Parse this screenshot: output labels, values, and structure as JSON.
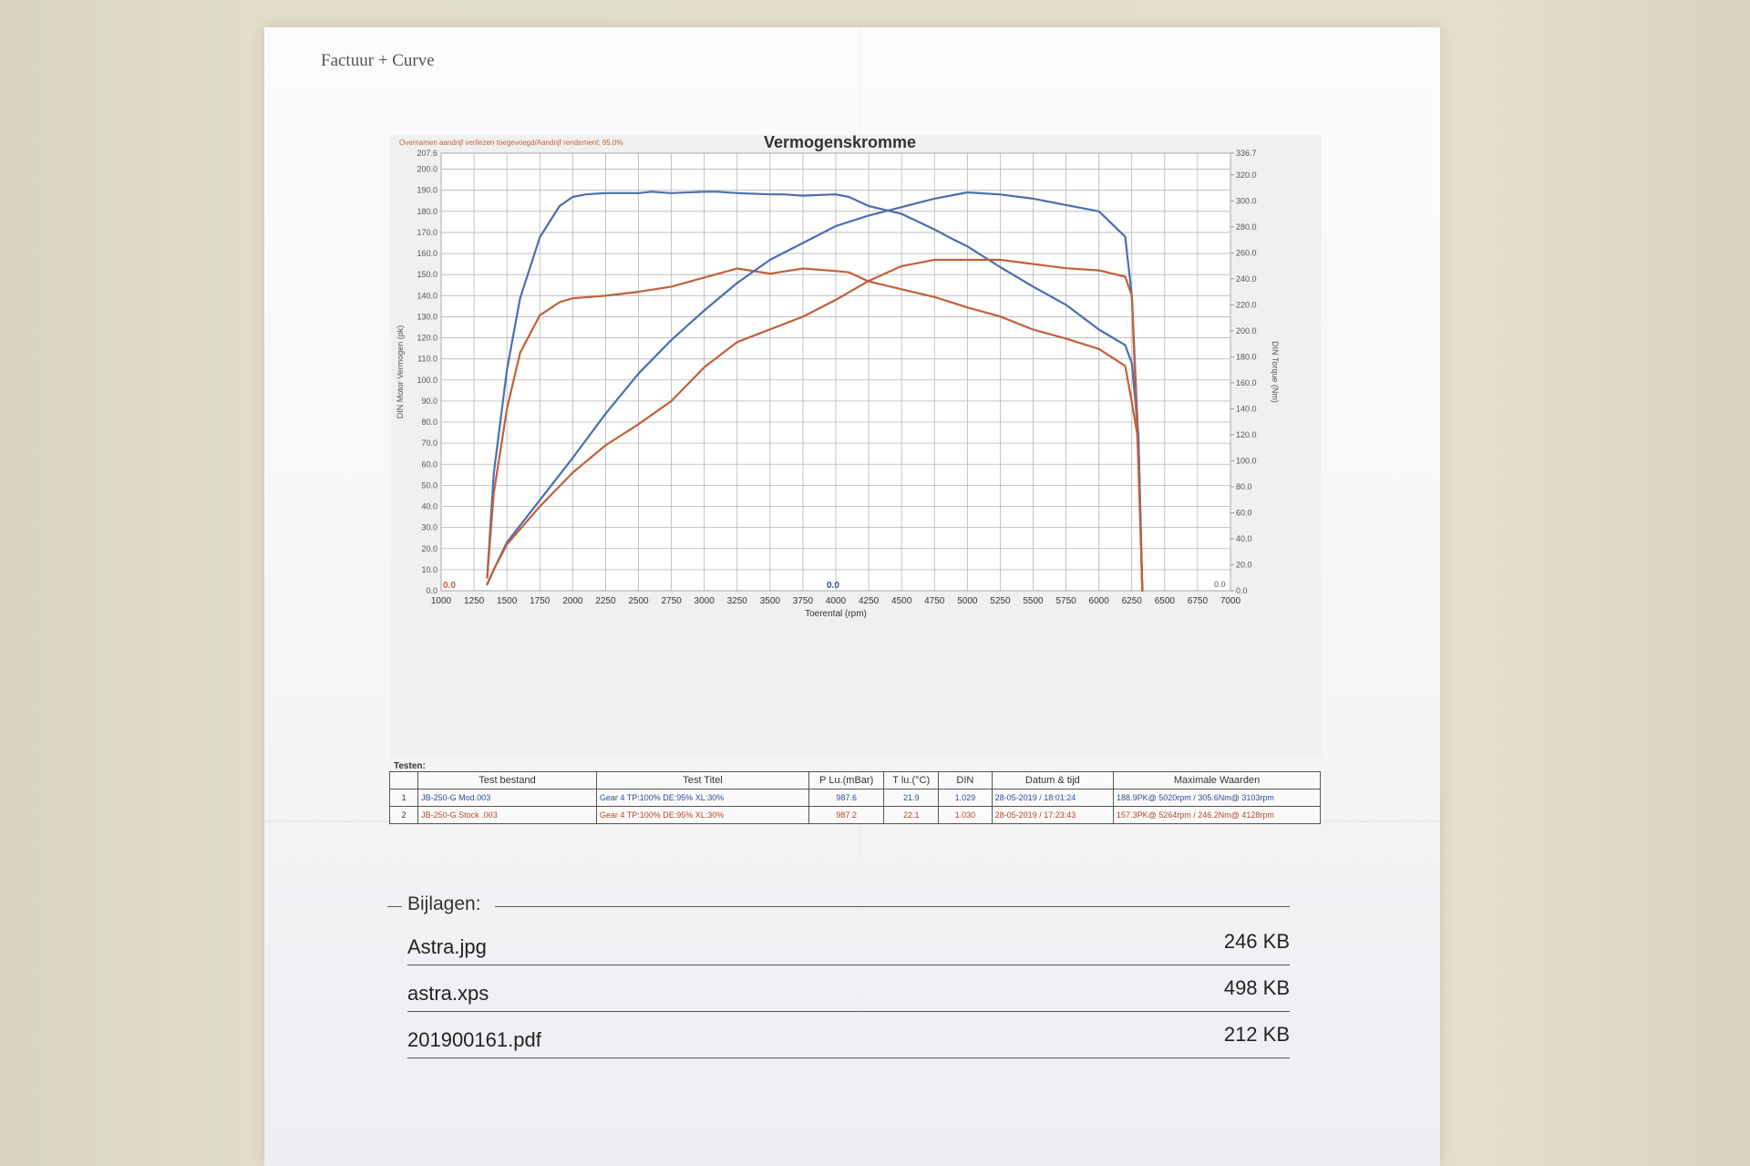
{
  "document": {
    "header": "Factuur + Curve"
  },
  "chart_data": {
    "type": "line",
    "title": "Vermogenskromme",
    "subtitle": "Overnamen aandrijf verliezen toegevoegd/Aandrijf rendement: 95.0%",
    "xlabel": "Toerental (rpm)",
    "ylabel_left": "DIN Motor Vermogen (pk)",
    "ylabel_right": "DIN Torque (Nm)",
    "xlim": [
      1000,
      7000
    ],
    "ylim_left": [
      0,
      207.6
    ],
    "ylim_right": [
      0,
      336.7
    ],
    "x_ticks": [
      1000,
      1250,
      1500,
      1750,
      2000,
      2250,
      2500,
      2750,
      3000,
      3250,
      3500,
      3750,
      4000,
      4250,
      4500,
      4750,
      5000,
      5250,
      5500,
      5750,
      6000,
      6250,
      6500,
      6750,
      7000
    ],
    "y_left_ticks": [
      "0.0",
      "10.0",
      "20.0",
      "30.0",
      "40.0",
      "50.0",
      "60.0",
      "70.0",
      "80.0",
      "90.0",
      "100.0",
      "110.0",
      "120.0",
      "130.0",
      "140.0",
      "150.0",
      "160.0",
      "170.0",
      "180.0",
      "190.0",
      "200.0",
      "207.6"
    ],
    "y_right_ticks": [
      "0.0",
      "20.0",
      "40.0",
      "60.0",
      "80.0",
      "100.0",
      "120.0",
      "140.0",
      "160.0",
      "180.0",
      "200.0",
      "220.0",
      "240.0",
      "260.0",
      "280.0",
      "300.0",
      "320.0",
      "336.7"
    ],
    "grid": true,
    "zero_labels": [
      "0.0",
      "0.0",
      "0.0"
    ],
    "series": [
      {
        "color": "#4a6fb0",
        "axis": "right",
        "kind": "torque",
        "x": [
          1350,
          1400,
          1500,
          1600,
          1750,
          1900,
          2000,
          2100,
          2250,
          2400,
          2500,
          2600,
          2750,
          3000,
          3100,
          3250,
          3500,
          3600,
          3750,
          4000,
          4100,
          4250,
          4500,
          4750,
          4900,
          5000,
          5250,
          5500,
          5750,
          6000,
          6200,
          6250,
          6300,
          6330
        ],
        "y": [
          10,
          90,
          170,
          225,
          272,
          296,
          303,
          305,
          306,
          306,
          306,
          307,
          306,
          307,
          307,
          306,
          305,
          305,
          304,
          305,
          303,
          296,
          290,
          278,
          270,
          265,
          249,
          234,
          220,
          201,
          189,
          175,
          120,
          0
        ]
      },
      {
        "color": "#c2603a",
        "axis": "right",
        "kind": "torque",
        "x": [
          1350,
          1400,
          1500,
          1600,
          1750,
          1900,
          2000,
          2250,
          2500,
          2750,
          3000,
          3250,
          3500,
          3750,
          4000,
          4100,
          4250,
          4500,
          4750,
          5000,
          5250,
          5500,
          5750,
          6000,
          6200,
          6250,
          6300,
          6330
        ],
        "y": [
          10,
          75,
          140,
          183,
          212,
          222,
          225,
          227,
          230,
          234,
          241,
          248,
          244,
          248,
          246,
          245,
          238,
          232,
          226,
          218,
          211,
          201,
          194,
          186,
          173,
          145,
          115,
          0
        ]
      },
      {
        "color": "#4a6fb0",
        "axis": "left",
        "kind": "power",
        "x": [
          1350,
          1400,
          1500,
          1750,
          2000,
          2250,
          2500,
          2750,
          3000,
          3250,
          3500,
          3750,
          4000,
          4250,
          4500,
          4750,
          5000,
          5250,
          5500,
          5750,
          6000,
          6200,
          6250,
          6300,
          6330
        ],
        "y": [
          3,
          10,
          23,
          43,
          63,
          84,
          103,
          119,
          133,
          146,
          157,
          165,
          173,
          178,
          182,
          186,
          189,
          188,
          186,
          183,
          180,
          168,
          140,
          70,
          0
        ]
      },
      {
        "color": "#c2603a",
        "axis": "left",
        "kind": "power",
        "x": [
          1350,
          1400,
          1500,
          1750,
          2000,
          2250,
          2500,
          2750,
          3000,
          3250,
          3500,
          3750,
          4000,
          4250,
          4500,
          4750,
          5000,
          5250,
          5500,
          5750,
          6000,
          6200,
          6250,
          6300,
          6330
        ],
        "y": [
          3,
          10,
          22,
          40,
          56,
          69,
          79,
          90,
          106,
          118,
          124,
          130,
          138,
          147,
          154,
          157,
          157,
          157,
          155,
          153,
          152,
          149,
          140,
          60,
          0
        ]
      }
    ]
  },
  "tests": {
    "label": "Testen:",
    "headers": [
      "",
      "Test bestand",
      "Test Titel",
      "P Lu.(mBar)",
      "T lu.(°C)",
      "DIN",
      "Datum & tijd",
      "Maximale Waarden"
    ],
    "rows": [
      {
        "num": "1",
        "file": "JB-250-G Mod.003",
        "title": "Gear 4 TP:100% DE:95% XL:30%",
        "pressure": "987.6",
        "temp": "21.9",
        "din": "1.029",
        "datetime": "28-05-2019 / 18:01:24",
        "max": "188.9PK@ 5020rpm / 305.6Nm@ 3103rpm",
        "color": "#2f4d9a"
      },
      {
        "num": "2",
        "file": "JB-250-G Stock .003",
        "title": "Gear 4 TP:100% DE:95% XL:30%",
        "pressure": "987.2",
        "temp": "22.1",
        "din": "1.030",
        "datetime": "28-05-2019 / 17:23:43",
        "max": "157.3PK@ 5264rpm / 246.2Nm@ 4128rpm",
        "color": "#b0482a"
      }
    ]
  },
  "attachments": {
    "heading": "Bijlagen:",
    "items": [
      {
        "name": "Astra.jpg",
        "size": "246 KB"
      },
      {
        "name": "astra.xps",
        "size": "498 KB"
      },
      {
        "name": "201900161.pdf",
        "size": "212 KB"
      }
    ]
  }
}
